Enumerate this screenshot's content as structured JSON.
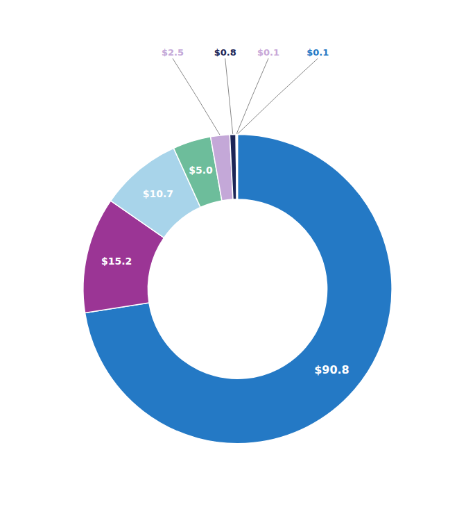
{
  "chart_data": {
    "type": "pie",
    "values": [
      90.8,
      15.2,
      10.7,
      5.0,
      2.5,
      0.8,
      0.1,
      0.1
    ],
    "value_labels": [
      "$90.8",
      "$15.2",
      "$10.7",
      "$5.0",
      "$2.5",
      "$0.8",
      "$0.1",
      "$0.1"
    ],
    "colors": [
      "#2479C5",
      "#9B3595",
      "#A8D4EA",
      "#6DBD9B",
      "#C4A8D8",
      "#1C2557",
      "#C8A8D8",
      "#2479C5"
    ],
    "data_labels": true
  }
}
